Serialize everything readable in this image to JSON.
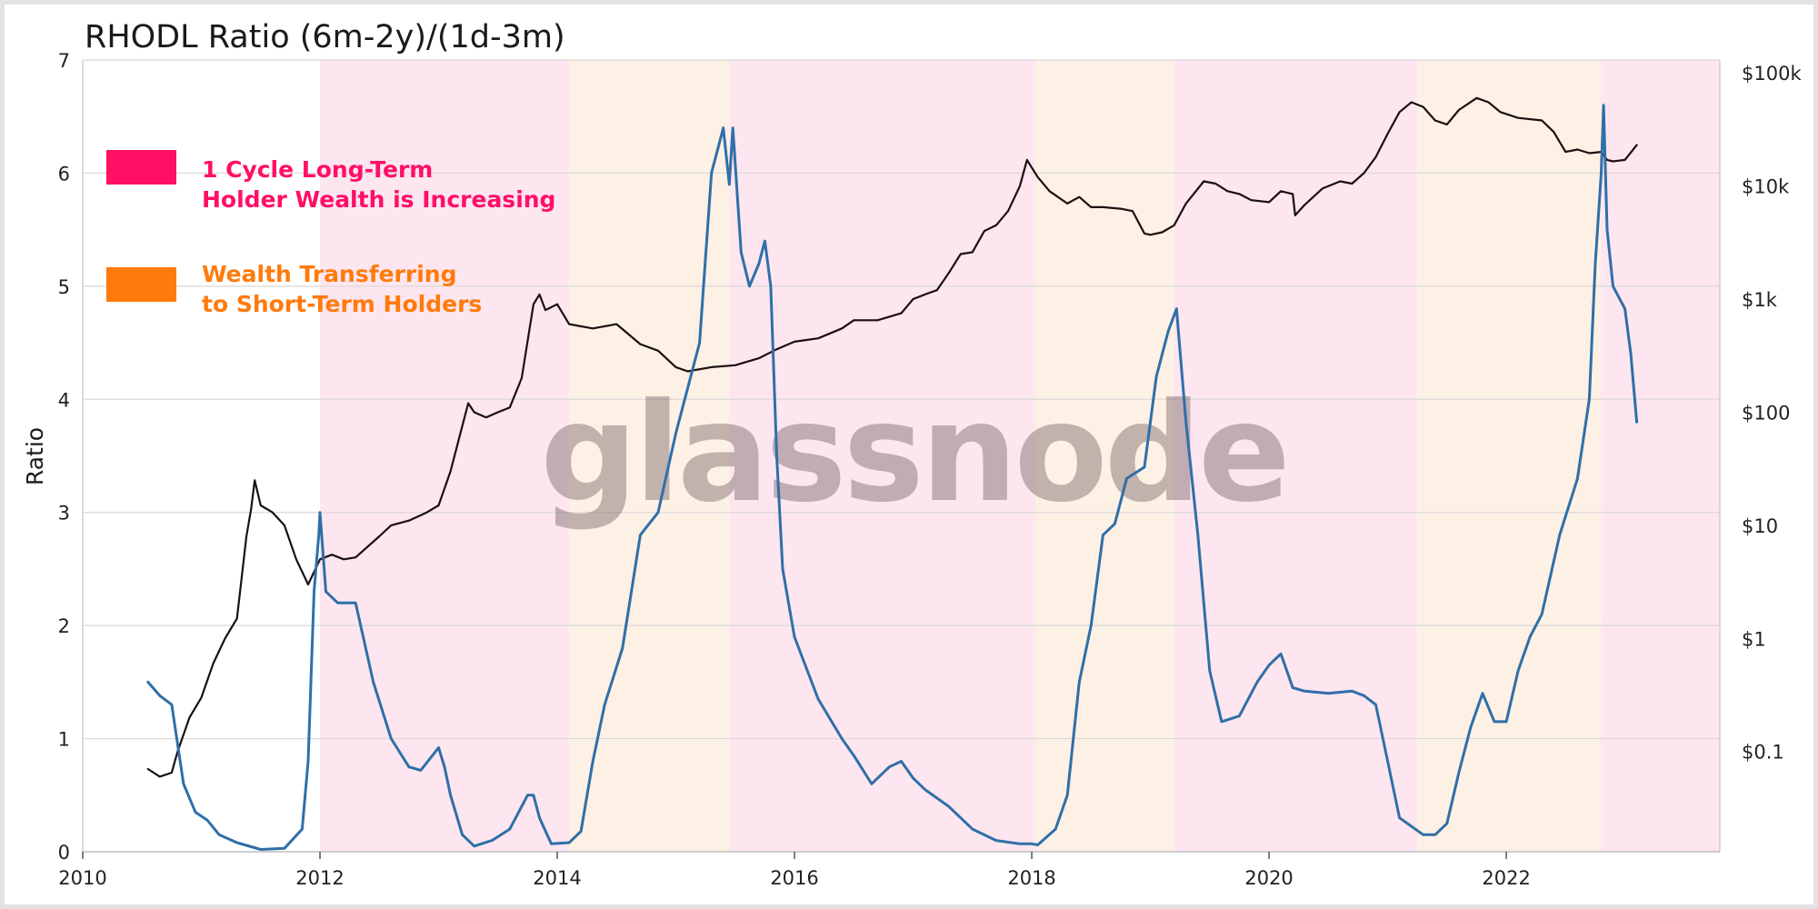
{
  "chart_data": {
    "type": "line",
    "title": "RHODL Ratio (6m-2y)/(1d-3m)",
    "ylabel": "Ratio",
    "xlabel": "",
    "watermark": "glassnode",
    "x_ticks": [
      2010,
      2012,
      2014,
      2016,
      2018,
      2020,
      2022
    ],
    "xlim": [
      2010,
      2023.8
    ],
    "ylim": [
      0,
      7
    ],
    "y_ticks": [
      0,
      1,
      2,
      3,
      4,
      5,
      6,
      7
    ],
    "y2_scale": "log",
    "y2lim": [
      0.013,
      130000
    ],
    "y2_ticks": [
      {
        "value": 0.1,
        "label": "$0.1"
      },
      {
        "value": 1,
        "label": "$1"
      },
      {
        "value": 10,
        "label": "$10"
      },
      {
        "value": 100,
        "label": "$100"
      },
      {
        "value": 1000,
        "label": "$1k"
      },
      {
        "value": 10000,
        "label": "$10k"
      },
      {
        "value": 100000,
        "label": "$100k"
      }
    ],
    "grid": "horizontal",
    "legend": [
      {
        "label_lines": [
          "1 Cycle Long-Term",
          "Holder Wealth is Increasing"
        ],
        "color": "#ff0f65"
      },
      {
        "label_lines": [
          "Wealth Transferring",
          "to Short-Term Holders"
        ],
        "color": "#ff7a0c"
      }
    ],
    "regions": [
      {
        "start": 2012.0,
        "end": 2014.1,
        "type": "long-term-increasing",
        "color": "#fde6ef"
      },
      {
        "start": 2014.1,
        "end": 2015.45,
        "type": "transferring",
        "color": "#fdf0e5"
      },
      {
        "start": 2015.45,
        "end": 2018.03,
        "type": "long-term-increasing",
        "color": "#fde6ef"
      },
      {
        "start": 2018.03,
        "end": 2019.2,
        "type": "transferring",
        "color": "#fdf0e5"
      },
      {
        "start": 2019.2,
        "end": 2021.25,
        "type": "long-term-increasing",
        "color": "#fde6ef"
      },
      {
        "start": 2021.25,
        "end": 2022.8,
        "type": "transferring",
        "color": "#fdf0e5"
      },
      {
        "start": 2022.8,
        "end": 2023.8,
        "type": "long-term-increasing",
        "color": "#fde6ef"
      }
    ],
    "series": [
      {
        "axis": "left",
        "color": "#2f6fa8",
        "x": [
          2010.55,
          2010.65,
          2010.75,
          2010.85,
          2010.95,
          2011.05,
          2011.15,
          2011.3,
          2011.5,
          2011.7,
          2011.85,
          2011.9,
          2011.95,
          2011.99,
          2012.0,
          2012.05,
          2012.15,
          2012.3,
          2012.45,
          2012.6,
          2012.75,
          2012.85,
          2013.0,
          2013.05,
          2013.1,
          2013.2,
          2013.3,
          2013.45,
          2013.6,
          2013.75,
          2013.8,
          2013.85,
          2013.95,
          2014.1,
          2014.2,
          2014.3,
          2014.4,
          2014.55,
          2014.7,
          2014.85,
          2015.0,
          2015.1,
          2015.2,
          2015.3,
          2015.4,
          2015.45,
          2015.48,
          2015.55,
          2015.62,
          2015.7,
          2015.75,
          2015.8,
          2015.85,
          2015.9,
          2016.0,
          2016.2,
          2016.4,
          2016.5,
          2016.65,
          2016.8,
          2016.9,
          2017.0,
          2017.1,
          2017.3,
          2017.5,
          2017.7,
          2017.9,
          2018.0,
          2018.05,
          2018.2,
          2018.3,
          2018.4,
          2018.5,
          2018.6,
          2018.7,
          2018.8,
          2018.95,
          2019.05,
          2019.15,
          2019.22,
          2019.3,
          2019.4,
          2019.5,
          2019.6,
          2019.75,
          2019.9,
          2020.0,
          2020.05,
          2020.1,
          2020.2,
          2020.3,
          2020.5,
          2020.7,
          2020.8,
          2020.9,
          2021.0,
          2021.1,
          2021.3,
          2021.4,
          2021.5,
          2021.6,
          2021.7,
          2021.8,
          2021.9,
          2022.0,
          2022.1,
          2022.2,
          2022.3,
          2022.45,
          2022.6,
          2022.7,
          2022.75,
          2022.8,
          2022.82,
          2022.85,
          2022.9,
          2023.0,
          2023.05,
          2023.1
        ],
        "y": [
          1.5,
          1.38,
          1.3,
          0.6,
          0.35,
          0.28,
          0.15,
          0.08,
          0.02,
          0.03,
          0.2,
          0.8,
          2.3,
          2.8,
          3.0,
          2.3,
          2.2,
          2.2,
          1.5,
          1.0,
          0.75,
          0.72,
          0.92,
          0.75,
          0.5,
          0.15,
          0.05,
          0.1,
          0.2,
          0.5,
          0.5,
          0.3,
          0.07,
          0.08,
          0.18,
          0.8,
          1.3,
          1.8,
          2.8,
          3.0,
          3.7,
          4.1,
          4.5,
          6.0,
          6.4,
          5.9,
          6.4,
          5.3,
          5.0,
          5.2,
          5.4,
          5.0,
          3.5,
          2.5,
          1.9,
          1.35,
          1.0,
          0.85,
          0.6,
          0.75,
          0.8,
          0.65,
          0.55,
          0.4,
          0.2,
          0.1,
          0.07,
          0.07,
          0.06,
          0.2,
          0.5,
          1.5,
          2.0,
          2.8,
          2.9,
          3.3,
          3.4,
          4.2,
          4.6,
          4.8,
          3.8,
          2.8,
          1.6,
          1.15,
          1.2,
          1.5,
          1.65,
          1.7,
          1.75,
          1.45,
          1.42,
          1.4,
          1.42,
          1.38,
          1.3,
          0.8,
          0.3,
          0.15,
          0.15,
          0.25,
          0.7,
          1.1,
          1.4,
          1.15,
          1.15,
          1.6,
          1.9,
          2.1,
          2.8,
          3.3,
          4.0,
          5.2,
          6.0,
          6.6,
          5.5,
          5.0,
          4.8,
          4.4,
          3.8
        ]
      },
      {
        "axis": "right",
        "color": "#1a1010",
        "x": [
          2010.55,
          2010.65,
          2010.75,
          2010.8,
          2010.9,
          2011.0,
          2011.1,
          2011.2,
          2011.3,
          2011.38,
          2011.42,
          2011.45,
          2011.5,
          2011.6,
          2011.7,
          2011.8,
          2011.9,
          2012.0,
          2012.1,
          2012.2,
          2012.3,
          2012.5,
          2012.6,
          2012.75,
          2012.9,
          2013.0,
          2013.1,
          2013.25,
          2013.3,
          2013.4,
          2013.5,
          2013.6,
          2013.7,
          2013.8,
          2013.85,
          2013.9,
          2014.0,
          2014.1,
          2014.3,
          2014.5,
          2014.7,
          2014.85,
          2015.0,
          2015.1,
          2015.3,
          2015.5,
          2015.7,
          2015.85,
          2016.0,
          2016.2,
          2016.4,
          2016.5,
          2016.7,
          2016.9,
          2017.0,
          2017.1,
          2017.2,
          2017.3,
          2017.4,
          2017.5,
          2017.6,
          2017.7,
          2017.8,
          2017.9,
          2017.96,
          2018.05,
          2018.15,
          2018.3,
          2018.4,
          2018.5,
          2018.6,
          2018.75,
          2018.85,
          2018.95,
          2019.0,
          2019.1,
          2019.2,
          2019.3,
          2019.45,
          2019.55,
          2019.65,
          2019.75,
          2019.85,
          2020.0,
          2020.1,
          2020.2,
          2020.22,
          2020.3,
          2020.45,
          2020.6,
          2020.7,
          2020.8,
          2020.9,
          2021.0,
          2021.1,
          2021.2,
          2021.3,
          2021.4,
          2021.5,
          2021.6,
          2021.75,
          2021.85,
          2021.95,
          2022.1,
          2022.3,
          2022.4,
          2022.5,
          2022.6,
          2022.7,
          2022.8,
          2022.85,
          2022.9,
          2023.0,
          2023.1
        ],
        "y": [
          0.07,
          0.06,
          0.065,
          0.1,
          0.2,
          0.3,
          0.6,
          1.0,
          1.5,
          8.0,
          14.0,
          25.0,
          15.0,
          13.0,
          10.0,
          5.0,
          3.0,
          5.0,
          5.5,
          5.0,
          5.2,
          8.0,
          10.0,
          11.0,
          13.0,
          15.0,
          30.0,
          120.0,
          100.0,
          90.0,
          100.0,
          110.0,
          200.0,
          900.0,
          1100.0,
          800.0,
          900.0,
          600.0,
          550.0,
          600.0,
          400.0,
          350.0,
          250.0,
          230.0,
          250.0,
          260.0,
          300.0,
          360.0,
          420.0,
          450.0,
          550.0,
          650.0,
          650.0,
          750.0,
          1000.0,
          1100.0,
          1200.0,
          1700.0,
          2500.0,
          2600.0,
          4000.0,
          4500.0,
          6000.0,
          10000.0,
          17000.0,
          12000.0,
          9000.0,
          7000.0,
          8000.0,
          6500.0,
          6500.0,
          6300.0,
          6000.0,
          3800.0,
          3700.0,
          3900.0,
          4500.0,
          7000.0,
          11000.0,
          10500.0,
          9000.0,
          8500.0,
          7500.0,
          7200.0,
          9000.0,
          8500.0,
          5500.0,
          6800.0,
          9500.0,
          11000.0,
          10500.0,
          13000.0,
          18000.0,
          29000.0,
          45000.0,
          55000.0,
          50000.0,
          38000.0,
          35000.0,
          47000.0,
          60000.0,
          55000.0,
          45000.0,
          40000.0,
          38000.0,
          30000.0,
          20000.0,
          21000.0,
          19500.0,
          20000.0,
          17000.0,
          16500.0,
          17000.0,
          23000.0
        ]
      }
    ]
  }
}
